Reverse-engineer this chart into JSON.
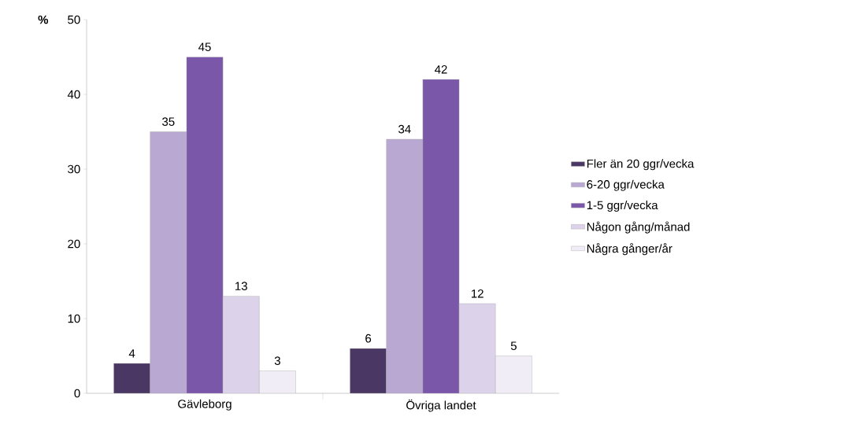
{
  "chart_data": {
    "type": "bar",
    "ylabel": "**%**",
    "categories": [
      "Gävleborg",
      "Övriga landet"
    ],
    "series": [
      {
        "name": "Fler än 20 ggr/vecka",
        "color": "#4b3763",
        "values": [
          4,
          6
        ]
      },
      {
        "name": "6-20 ggr/vecka",
        "color": "#b8a8d2",
        "values": [
          35,
          34
        ]
      },
      {
        "name": "1-5 ggr/vecka",
        "color": "#7b57aa",
        "values": [
          45,
          42
        ]
      },
      {
        "name": "Någon gång/månad",
        "color": "#dcd2ea",
        "values": [
          13,
          12
        ]
      },
      {
        "name": "Några gånger/år",
        "color": "#f1edf6",
        "values": [
          3,
          5
        ]
      }
    ],
    "ylim": [
      0,
      50
    ],
    "yticks": [
      0,
      10,
      20,
      30,
      40,
      50
    ],
    "data_labels": true,
    "legend": "right",
    "grid": false
  }
}
